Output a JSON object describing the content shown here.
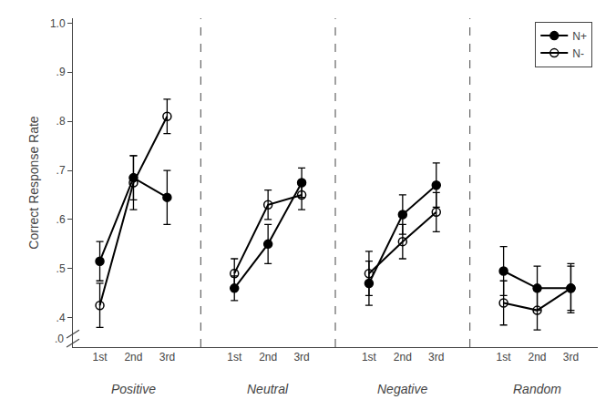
{
  "chart_data": {
    "type": "line",
    "y_label": "Correct Response Rate",
    "categories": [
      "1st",
      "2nd",
      "3rd",
      null,
      "1st",
      "2nd",
      "3rd",
      null,
      "1st",
      "2nd",
      "3rd",
      null,
      "1st",
      "2nd",
      "3rd"
    ],
    "series": [
      {
        "name": "N+",
        "color": "#000000",
        "marker": "circle",
        "values": [
          0.515,
          0.685,
          0.645,
          null,
          0.46,
          0.55,
          0.675,
          null,
          0.47,
          0.61,
          0.67,
          null,
          0.495,
          0.46,
          0.46
        ],
        "errors": [
          0.04,
          0.045,
          0.055,
          null,
          0.025,
          0.04,
          0.03,
          null,
          0.045,
          0.04,
          0.045,
          null,
          0.05,
          0.045,
          0.05
        ]
      },
      {
        "name": "N-",
        "color": "#000000",
        "marker": "circle-open",
        "values": [
          0.425,
          0.675,
          0.81,
          null,
          0.49,
          0.63,
          0.65,
          null,
          0.49,
          0.555,
          0.615,
          null,
          0.43,
          0.415,
          0.46
        ],
        "errors": [
          0.045,
          0.055,
          0.035,
          null,
          0.03,
          0.03,
          0.03,
          null,
          0.045,
          0.035,
          0.04,
          null,
          0.045,
          0.04,
          0.045
        ]
      }
    ],
    "annotations": [
      {
        "text": "Positive",
        "x": 1
      },
      {
        "text": "Neutral",
        "x": 5
      },
      {
        "text": "Negative",
        "x": 9
      },
      {
        "text": "Random",
        "x": 13
      },
      {
        "text": ".0"
      }
    ],
    "ylim": [
      0.34,
      1.01
    ],
    "yticks": [
      {
        "value": 0.4,
        "label": ".4"
      },
      {
        "value": 0.5,
        "label": ".5"
      },
      {
        "value": 0.6,
        "label": ".6"
      },
      {
        "value": 0.7,
        "label": ".7"
      },
      {
        "value": 0.8,
        "label": ".8"
      },
      {
        "value": 0.9,
        "label": ".9"
      },
      {
        "value": 1.0,
        "label": "1.0"
      }
    ],
    "grid": false,
    "legend": "upper right"
  }
}
